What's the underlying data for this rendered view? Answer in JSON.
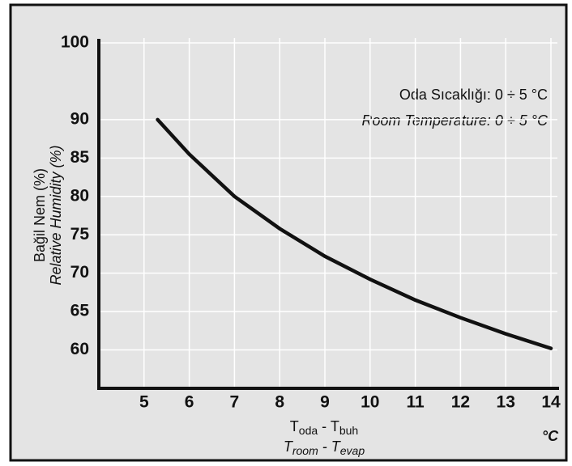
{
  "chart_data": {
    "type": "line",
    "ylabel": "Bağil Nem (%)",
    "ylabel2": "Relative Humidity (%)",
    "xlabel_parts": [
      "T",
      "oda",
      " - T",
      "buh"
    ],
    "xlabel2_parts": [
      "T",
      "room",
      " - T",
      "evap"
    ],
    "x_unit": "°C",
    "annotations": [
      "Oda Sıcaklığı: 0 ÷ 5 °C",
      "Room Temperature: 0 ÷ 5 °C"
    ],
    "x": [
      5.3,
      6,
      7,
      8,
      9,
      10,
      11,
      12,
      13,
      14
    ],
    "series": [
      {
        "color": "#111111",
        "values": [
          90,
          85.5,
          80,
          75.8,
          72.2,
          69.2,
          66.5,
          64.2,
          62.1,
          60.2
        ]
      }
    ],
    "xlim": [
      4,
      14
    ],
    "xticks": [
      5,
      6,
      7,
      8,
      9,
      10,
      11,
      12,
      13,
      14
    ],
    "ylim": [
      55,
      100
    ],
    "yticks": [
      60,
      65,
      70,
      75,
      80,
      85,
      90,
      100
    ],
    "grid": true
  }
}
